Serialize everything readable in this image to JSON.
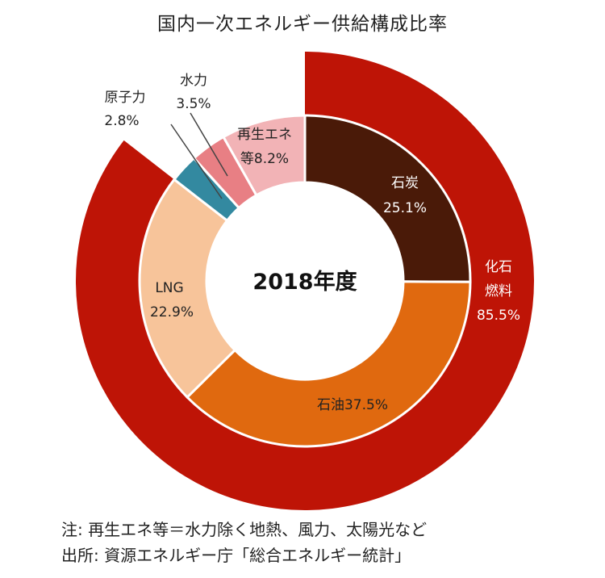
{
  "chart_data": {
    "type": "pie",
    "subtype": "nested-donut",
    "title": "国内一次エネルギー供給構成比率",
    "center_label": "2018年度",
    "unit": "%",
    "inner_ring": [
      {
        "name": "石炭",
        "value": 25.1,
        "label": "石炭",
        "value_label": "25.1%",
        "color": "#4a1a08"
      },
      {
        "name": "石油",
        "value": 37.5,
        "label": "石油37.5%",
        "color": "#e0690f"
      },
      {
        "name": "LNG",
        "value": 22.9,
        "label": "LNG",
        "value_label": "22.9%",
        "color": "#f7c49a"
      },
      {
        "name": "原子力",
        "value": 2.8,
        "label": "原子力",
        "value_label": "2.8%",
        "color": "#3389a0"
      },
      {
        "name": "水力",
        "value": 3.5,
        "label": "水力",
        "value_label": "3.5%",
        "color": "#e87f84"
      },
      {
        "name": "再生エネ等",
        "value": 8.2,
        "label_line1": "再生エネ",
        "label_line2": "等8.2%",
        "color": "#f2b3b6"
      }
    ],
    "outer_ring": [
      {
        "name": "化石燃料",
        "value": 85.5,
        "label_line1": "化石",
        "label_line2": "燃料",
        "value_label": "85.5%",
        "color": "#be1406"
      }
    ],
    "notes": [
      "注: 再生エネ等＝水力除く地熱、風力、太陽光など",
      "出所: 資源エネルギー庁「総合エネルギー統計」"
    ]
  }
}
